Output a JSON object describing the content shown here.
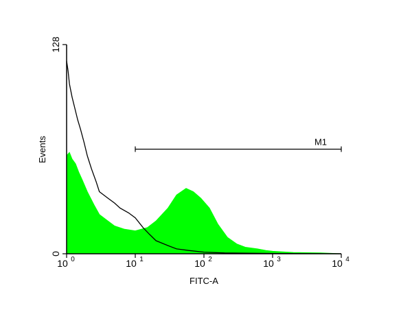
{
  "chart_data": {
    "type": "area",
    "xlabel": "FITC-A",
    "ylabel": "Events",
    "x_scale": "log",
    "xlim": [
      1,
      10000
    ],
    "ylim": [
      0,
      128
    ],
    "x_ticks": [
      {
        "value": 1,
        "base": "10",
        "exp": "0"
      },
      {
        "value": 10,
        "base": "10",
        "exp": "1"
      },
      {
        "value": 100,
        "base": "10",
        "exp": "2"
      },
      {
        "value": 1000,
        "base": "10",
        "exp": "3"
      },
      {
        "value": 10000,
        "base": "10",
        "exp": "4"
      }
    ],
    "y_ticks": [
      {
        "value": 0,
        "label": "0"
      },
      {
        "value": 128,
        "label": "128"
      }
    ],
    "marker": {
      "name": "M1",
      "x_start": 10,
      "x_end": 10000,
      "level": 64
    },
    "series": [
      {
        "style": "filled",
        "color": "#00ff00",
        "x": [
          1,
          1.1,
          1.2,
          1.35,
          1.5,
          1.7,
          2,
          2.5,
          3,
          4,
          5,
          7,
          10,
          15,
          20,
          30,
          40,
          55,
          70,
          90,
          120,
          160,
          220,
          300,
          400,
          600,
          800,
          1000,
          2000,
          5000,
          10000
        ],
        "y": [
          60,
          62,
          58,
          55,
          50,
          45,
          38,
          30,
          24,
          20,
          17,
          15,
          14,
          16,
          20,
          28,
          36,
          40,
          38,
          34,
          28,
          18,
          10,
          6,
          4,
          3,
          2,
          1.5,
          0.8,
          0.5,
          0
        ]
      },
      {
        "style": "line",
        "color": "#000000",
        "x": [
          1,
          1.05,
          1.1,
          1.2,
          1.3,
          1.45,
          1.6,
          1.8,
          2,
          2.3,
          2.7,
          3,
          4,
          5,
          6,
          8,
          10,
          13,
          16,
          20,
          30,
          40,
          60,
          100,
          200,
          1000,
          10000
        ],
        "y": [
          118,
          112,
          104,
          96,
          90,
          82,
          76,
          68,
          60,
          52,
          44,
          38,
          34,
          31,
          28,
          25,
          22,
          16,
          12,
          8,
          5,
          3,
          2,
          1,
          0.5,
          0.2,
          0
        ]
      }
    ]
  }
}
